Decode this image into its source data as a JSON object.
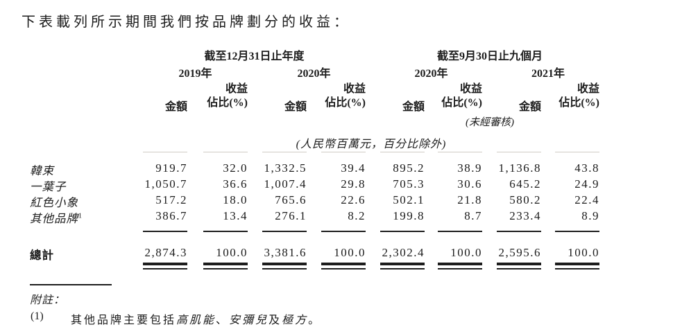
{
  "title": "下表載列所示期間我們按品牌劃分的收益：",
  "table": {
    "period_headers": [
      {
        "label": "截至12月31日止年度"
      },
      {
        "label": "截至9月30日止九個月"
      }
    ],
    "year_headers": [
      "2019年",
      "2020年",
      "2020年",
      "2021年"
    ],
    "amount_label": "金額",
    "share_label_line1": "收益",
    "share_label_line2": "佔比(%)",
    "unaudited_note": "(未經審核)",
    "units_note": "(人民幣百萬元，百分比除外)",
    "rows": [
      {
        "brand": "韓束",
        "footnote_ref": "",
        "values": [
          "919.7",
          "32.0",
          "1,332.5",
          "39.4",
          "895.2",
          "38.9",
          "1,136.8",
          "43.8"
        ]
      },
      {
        "brand": "一葉子",
        "footnote_ref": "",
        "values": [
          "1,050.7",
          "36.6",
          "1,007.4",
          "29.8",
          "705.3",
          "30.6",
          "645.2",
          "24.9"
        ]
      },
      {
        "brand": "紅色小象",
        "footnote_ref": "",
        "values": [
          "517.2",
          "18.0",
          "765.6",
          "22.6",
          "502.1",
          "21.8",
          "580.2",
          "22.4"
        ]
      },
      {
        "brand": "其他品牌",
        "footnote_ref": "1",
        "values": [
          "386.7",
          "13.4",
          "276.1",
          "8.2",
          "199.8",
          "8.7",
          "233.4",
          "8.9"
        ]
      }
    ],
    "total": {
      "label": "總計",
      "values": [
        "2,874.3",
        "100.0",
        "3,381.6",
        "100.0",
        "2,302.4",
        "100.0",
        "2,595.6",
        "100.0"
      ]
    }
  },
  "footnotes": {
    "heading": "附註：",
    "items": [
      {
        "marker": "(1)",
        "seg1": "其他品牌主要包括",
        "seg2": "高肌能",
        "seg3": "、",
        "seg4": "安彌兒",
        "seg5": "及",
        "seg6": "極方",
        "seg7": "。"
      }
    ]
  }
}
